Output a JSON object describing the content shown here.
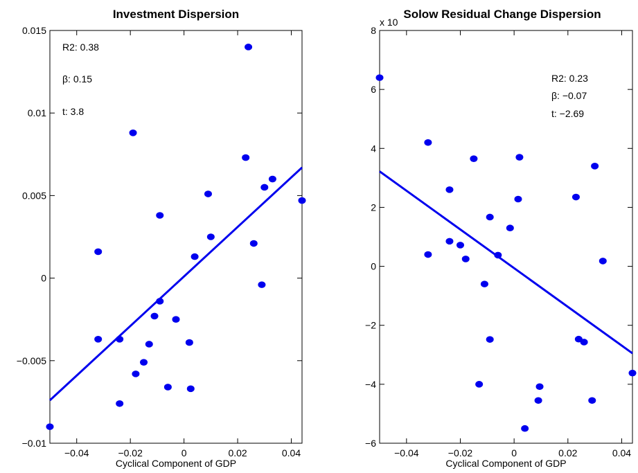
{
  "chart_data": [
    {
      "type": "scatter",
      "title": "Investment Dispersion",
      "xlabel": "Cyclical Component of GDP",
      "ylabel": "",
      "xlim": [
        -0.05,
        0.044
      ],
      "ylim": [
        -0.01,
        0.015
      ],
      "xticks": [
        -0.04,
        -0.02,
        0,
        0.02,
        0.04
      ],
      "xtick_labels": [
        "−0.04",
        "−0.02",
        "0",
        "0.02",
        "0.04"
      ],
      "yticks": [
        -0.01,
        -0.005,
        0,
        0.005,
        0.01,
        0.015
      ],
      "ytick_labels": [
        "−0.01",
        "−0.005",
        "0",
        "0.005",
        "0.01",
        "0.015"
      ],
      "annotations": [
        "R2: 0.38",
        "β: 0.15",
        "t: 3.8"
      ],
      "points": [
        {
          "x": -0.05,
          "y": -0.009
        },
        {
          "x": -0.032,
          "y": 0.0016
        },
        {
          "x": -0.032,
          "y": -0.0037
        },
        {
          "x": -0.024,
          "y": -0.0037
        },
        {
          "x": -0.024,
          "y": -0.0076
        },
        {
          "x": -0.019,
          "y": 0.0088
        },
        {
          "x": -0.018,
          "y": -0.0058
        },
        {
          "x": -0.015,
          "y": -0.0051
        },
        {
          "x": -0.013,
          "y": -0.004
        },
        {
          "x": -0.011,
          "y": -0.0023
        },
        {
          "x": -0.009,
          "y": 0.0038
        },
        {
          "x": -0.009,
          "y": -0.0014
        },
        {
          "x": -0.006,
          "y": -0.0066
        },
        {
          "x": -0.003,
          "y": -0.0025
        },
        {
          "x": 0.002,
          "y": -0.0039
        },
        {
          "x": 0.0025,
          "y": -0.0067
        },
        {
          "x": 0.004,
          "y": 0.0013
        },
        {
          "x": 0.009,
          "y": 0.0051
        },
        {
          "x": 0.01,
          "y": 0.0025
        },
        {
          "x": 0.023,
          "y": 0.0073
        },
        {
          "x": 0.024,
          "y": 0.014
        },
        {
          "x": 0.026,
          "y": 0.0021
        },
        {
          "x": 0.029,
          "y": -0.0004
        },
        {
          "x": 0.03,
          "y": 0.0055
        },
        {
          "x": 0.033,
          "y": 0.006
        },
        {
          "x": 0.044,
          "y": 0.0047
        }
      ],
      "fit_line": {
        "x": [
          -0.05,
          0.044
        ],
        "y": [
          -0.0074,
          0.0067
        ]
      },
      "color": "#0000ee"
    },
    {
      "type": "scatter",
      "title": "Solow Residual Change Dispersion",
      "exponent_label": "x 10",
      "xlabel": "Cyclical Component of GDP",
      "ylabel": "",
      "xlim": [
        -0.05,
        0.044
      ],
      "ylim": [
        -6,
        8
      ],
      "xticks": [
        -0.04,
        -0.02,
        0,
        0.02,
        0.04
      ],
      "xtick_labels": [
        "−0.04",
        "−0.02",
        "0",
        "0.02",
        "0.04"
      ],
      "yticks": [
        -6,
        -4,
        -2,
        0,
        2,
        4,
        6,
        8
      ],
      "ytick_labels": [
        "−6",
        "−4",
        "−2",
        "0",
        "2",
        "4",
        "6",
        "8"
      ],
      "annotations": [
        "R2: 0.23",
        "β: −0.07",
        "t: −2.69"
      ],
      "points": [
        {
          "x": -0.05,
          "y": 6.4
        },
        {
          "x": -0.032,
          "y": 4.2
        },
        {
          "x": -0.032,
          "y": 0.4
        },
        {
          "x": -0.024,
          "y": 2.6
        },
        {
          "x": -0.024,
          "y": 0.85
        },
        {
          "x": -0.02,
          "y": 0.72
        },
        {
          "x": -0.018,
          "y": 0.25
        },
        {
          "x": -0.015,
          "y": 3.65
        },
        {
          "x": -0.013,
          "y": -4.0
        },
        {
          "x": -0.011,
          "y": -0.6
        },
        {
          "x": -0.009,
          "y": 1.67
        },
        {
          "x": -0.009,
          "y": -2.48
        },
        {
          "x": -0.006,
          "y": 0.38
        },
        {
          "x": -0.0015,
          "y": 1.3
        },
        {
          "x": 0.0015,
          "y": 2.28
        },
        {
          "x": 0.002,
          "y": 3.7
        },
        {
          "x": 0.004,
          "y": -5.5
        },
        {
          "x": 0.009,
          "y": -4.55
        },
        {
          "x": 0.0095,
          "y": -4.08
        },
        {
          "x": 0.023,
          "y": 2.35
        },
        {
          "x": 0.024,
          "y": -2.47
        },
        {
          "x": 0.026,
          "y": -2.57
        },
        {
          "x": 0.029,
          "y": -4.55
        },
        {
          "x": 0.03,
          "y": 3.4
        },
        {
          "x": 0.033,
          "y": 0.18
        },
        {
          "x": 0.044,
          "y": -3.62
        }
      ],
      "fit_line": {
        "x": [
          -0.05,
          0.044
        ],
        "y": [
          3.22,
          -2.95
        ]
      },
      "color": "#0000ee"
    }
  ]
}
